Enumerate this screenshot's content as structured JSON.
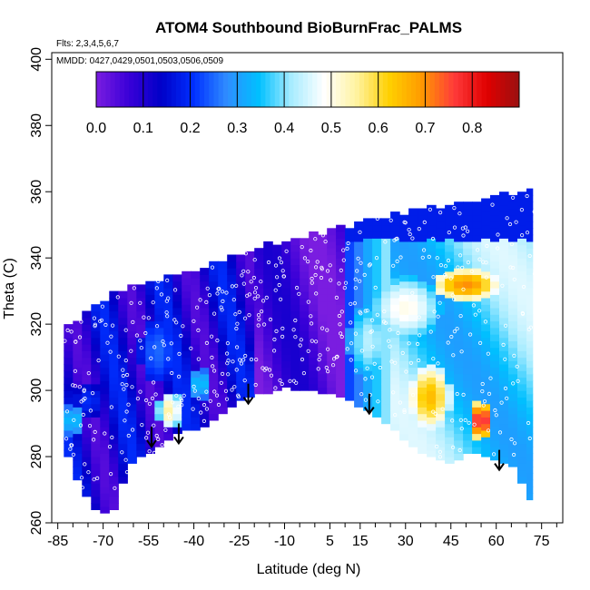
{
  "chart_data": {
    "type": "heatmap",
    "title": "ATOM4 Southbound BioBurnFrac_PALMS",
    "subtitle_flights": "Flts: 2,3,4,5,6,7",
    "subtitle_dates": "MMDD: 0427,0429,0501,0503,0506,0509",
    "xlabel": "Latitude (deg N)",
    "ylabel": "Theta (C)",
    "xlim": [
      -87,
      82
    ],
    "ylim": [
      260,
      402
    ],
    "x_ticks": [
      -85,
      -70,
      -55,
      -40,
      -25,
      -10,
      5,
      15,
      30,
      45,
      60,
      75
    ],
    "x_tick_labels": [
      "-85",
      "-70",
      "-55",
      "-40",
      "-25",
      "-10",
      "5",
      "15",
      "30",
      "45",
      "60",
      "75"
    ],
    "y_ticks": [
      260,
      280,
      300,
      320,
      340,
      360,
      380,
      400
    ],
    "y_tick_labels": [
      "260",
      "280",
      "300",
      "320",
      "340",
      "360",
      "380",
      "400"
    ],
    "colorbar": {
      "range": [
        0,
        0.9
      ],
      "ticks": [
        0.0,
        0.1,
        0.2,
        0.3,
        0.4,
        0.5,
        0.6,
        0.7,
        0.8
      ],
      "tick_labels": [
        "0.0",
        "0.1",
        "0.2",
        "0.3",
        "0.4",
        "0.5",
        "0.6",
        "0.7",
        "0.8"
      ],
      "colors": [
        "#7a1de0",
        "#3a00d8",
        "#0000c8",
        "#0030ff",
        "#2f8cff",
        "#00c0ff",
        "#a8ecff",
        "#ffffff",
        "#fff3a0",
        "#ffd000",
        "#ff9a00",
        "#ff3a3a",
        "#e00000",
        "#9a1010"
      ]
    },
    "envelope": {
      "lats": [
        -83,
        -80,
        -77,
        -74,
        -71,
        -68,
        -65,
        -62,
        -59,
        -56,
        -53,
        -50,
        -47,
        -44,
        -41,
        -38,
        -35,
        -32,
        -29,
        -26,
        -23,
        -20,
        -17,
        -14,
        -11,
        -8,
        -5,
        -2,
        1,
        4,
        7,
        10,
        13,
        16,
        19,
        22,
        25,
        28,
        31,
        34,
        37,
        40,
        43,
        46,
        49,
        52,
        55,
        58,
        61,
        64,
        67,
        70,
        72
      ],
      "theta_top": [
        320,
        321,
        323,
        325,
        327,
        329,
        330,
        331,
        332,
        332,
        333,
        334,
        334,
        335,
        336,
        337,
        338,
        339,
        340,
        341,
        342,
        343,
        344,
        344,
        345,
        345,
        346,
        347,
        347,
        348,
        349,
        349,
        350,
        351,
        352,
        352,
        353,
        353,
        354,
        354,
        355,
        355,
        356,
        356,
        357,
        357,
        358,
        358,
        359,
        359,
        360,
        360,
        341
      ],
      "theta_bottom": [
        280,
        273,
        268,
        264,
        263,
        264,
        272,
        278,
        280,
        281,
        283,
        285,
        287,
        288,
        288,
        289,
        291,
        293,
        295,
        297,
        298,
        299,
        299,
        300,
        301,
        300,
        300,
        300,
        299,
        299,
        298,
        297,
        295,
        294,
        292,
        290,
        288,
        285,
        283,
        281,
        280,
        279,
        278,
        279,
        281,
        281,
        280,
        279,
        278,
        277,
        272,
        267,
        264
      ]
    },
    "hotspots": [
      {
        "lat": 38,
        "theta": 298,
        "value": 0.65,
        "rlat": 7,
        "rtheta": 10
      },
      {
        "lat": 55,
        "theta": 291,
        "value": 0.8,
        "rlat": 4,
        "rtheta": 6
      },
      {
        "lat": 50,
        "theta": 332,
        "value": 0.7,
        "rlat": 11,
        "rtheta": 5
      },
      {
        "lat": 30,
        "theta": 325,
        "value": 0.5,
        "rlat": 12,
        "rtheta": 10
      },
      {
        "lat": 18,
        "theta": 315,
        "value": 0.43,
        "rlat": 7,
        "rtheta": 12
      },
      {
        "lat": 65,
        "theta": 310,
        "value": 0.35,
        "rlat": 6,
        "rtheta": 30
      },
      {
        "lat": -48,
        "theta": 294,
        "value": 0.55,
        "rlat": 4,
        "rtheta": 6
      },
      {
        "lat": -52,
        "theta": 312,
        "value": 0.25,
        "rlat": 6,
        "rtheta": 10
      },
      {
        "lat": -38,
        "theta": 302,
        "value": 0.35,
        "rlat": 4,
        "rtheta": 5
      },
      {
        "lat": -80,
        "theta": 291,
        "value": 0.35,
        "rlat": 4,
        "rtheta": 5
      },
      {
        "lat": -75,
        "theta": 297,
        "value": 0.2,
        "rlat": 5,
        "rtheta": 5
      }
    ],
    "arrows": [
      {
        "lat": -54,
        "theta": 283
      },
      {
        "lat": -45,
        "theta": 284
      },
      {
        "lat": -22,
        "theta": 296
      },
      {
        "lat": 18,
        "theta": 293
      },
      {
        "lat": 61,
        "theta": 276
      }
    ]
  }
}
